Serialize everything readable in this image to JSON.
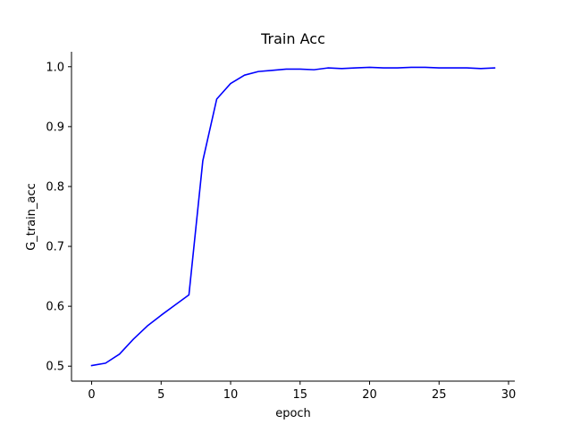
{
  "chart_data": {
    "type": "line",
    "title": "Train Acc",
    "xlabel": "epoch",
    "ylabel": "G_train_acc",
    "xlim": [
      -1.45,
      30.45
    ],
    "ylim": [
      0.475,
      1.025
    ],
    "xticks": [
      0,
      5,
      10,
      15,
      20,
      25,
      30
    ],
    "xtick_labels": [
      "0",
      "5",
      "10",
      "15",
      "20",
      "25",
      "30"
    ],
    "yticks": [
      0.5,
      0.6,
      0.7,
      0.8,
      0.9,
      1.0
    ],
    "ytick_labels": [
      "0.5",
      "0.6",
      "0.7",
      "0.8",
      "0.9",
      "1.0"
    ],
    "grid": false,
    "spines": [
      "left",
      "bottom"
    ],
    "series": [
      {
        "color": "#0000ff",
        "x": [
          0,
          1,
          2,
          3,
          4,
          5,
          6,
          7,
          8,
          9,
          10,
          11,
          12,
          13,
          14,
          15,
          16,
          17,
          18,
          19,
          20,
          21,
          22,
          23,
          24,
          25,
          26,
          27,
          28,
          29
        ],
        "y": [
          0.501,
          0.505,
          0.52,
          0.545,
          0.567,
          0.585,
          0.602,
          0.619,
          0.843,
          0.946,
          0.972,
          0.986,
          0.992,
          0.994,
          0.996,
          0.996,
          0.995,
          0.998,
          0.997,
          0.998,
          0.999,
          0.998,
          0.998,
          0.999,
          0.999,
          0.998,
          0.998,
          0.998,
          0.997,
          0.998
        ]
      }
    ]
  }
}
